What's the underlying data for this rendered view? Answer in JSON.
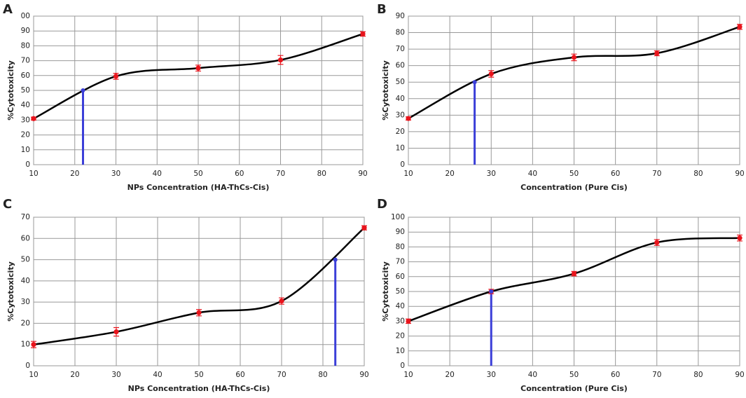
{
  "chart_data": [
    {
      "type": "line",
      "panel_label": "A",
      "x_label": "NPs  Concentration (HA-ThCs-Cis)",
      "y_label": "%Cytotoxicity",
      "x": [
        10,
        30,
        50,
        70,
        90
      ],
      "series": [
        {
          "color": "#e8141c",
          "values": [
            31,
            59.5,
            65,
            70.5,
            88
          ],
          "errors": [
            1,
            2,
            2,
            3,
            1.5
          ]
        }
      ],
      "marker": {
        "x": 22,
        "y": 50,
        "color": "#3b3fd8"
      },
      "xlim": [
        10,
        90
      ],
      "xticks": [
        10,
        20,
        30,
        40,
        50,
        60,
        70,
        80,
        90
      ],
      "ylim": [
        0,
        100
      ],
      "yticks": [
        0,
        10,
        20,
        30,
        40,
        50,
        60,
        70,
        80,
        90,
        {
          "value": 100,
          "label": "00"
        }
      ],
      "grid": true
    },
    {
      "type": "line",
      "panel_label": "B",
      "x_label": "Concentration (Pure Cis)",
      "y_label": "%Cytotoxicity",
      "x": [
        10,
        30,
        50,
        70,
        90
      ],
      "series": [
        {
          "color": "#e8141c",
          "values": [
            28,
            55,
            65,
            67.5,
            83.5
          ],
          "errors": [
            1,
            2,
            2,
            1.5,
            1.5
          ]
        }
      ],
      "marker": {
        "x": 26,
        "y": 50,
        "color": "#3b3fd8"
      },
      "xlim": [
        10,
        90
      ],
      "xticks": [
        10,
        20,
        30,
        40,
        50,
        60,
        70,
        80,
        90
      ],
      "ylim": [
        0,
        90
      ],
      "yticks": [
        0,
        10,
        20,
        30,
        40,
        50,
        60,
        70,
        80,
        90
      ],
      "grid": true
    },
    {
      "type": "line",
      "panel_label": "C",
      "x_label": "NPs Concentration (HA-ThCs-Cis)",
      "y_label": "%Cytotoxicity",
      "x": [
        10,
        30,
        50,
        70,
        90
      ],
      "series": [
        {
          "color": "#e8141c",
          "values": [
            10,
            16,
            25,
            30.5,
            65
          ],
          "errors": [
            1.5,
            2,
            1.5,
            1.5,
            1
          ]
        }
      ],
      "marker": {
        "x": 83,
        "y": 50,
        "color": "#3b3fd8"
      },
      "xlim": [
        10,
        90
      ],
      "xticks": [
        10,
        20,
        30,
        40,
        50,
        60,
        70,
        80,
        90
      ],
      "ylim": [
        0,
        70
      ],
      "yticks": [
        0,
        10,
        20,
        30,
        40,
        50,
        60,
        70
      ],
      "grid": true
    },
    {
      "type": "line",
      "panel_label": "D",
      "x_label": "Concentration (Pure Cis)",
      "y_label": "%Cytotoxicity",
      "x": [
        10,
        30,
        50,
        70,
        90
      ],
      "series": [
        {
          "color": "#e8141c",
          "values": [
            30,
            50,
            62,
            83,
            86
          ],
          "errors": [
            1.5,
            1.5,
            1.5,
            2,
            2
          ]
        }
      ],
      "marker": {
        "x": 30,
        "y": 50,
        "color": "#3b3fd8"
      },
      "xlim": [
        10,
        90
      ],
      "xticks": [
        10,
        20,
        30,
        40,
        50,
        60,
        70,
        80,
        90
      ],
      "ylim": [
        0,
        100
      ],
      "yticks": [
        0,
        10,
        20,
        30,
        40,
        50,
        60,
        70,
        80,
        90,
        100
      ],
      "grid": true
    }
  ]
}
